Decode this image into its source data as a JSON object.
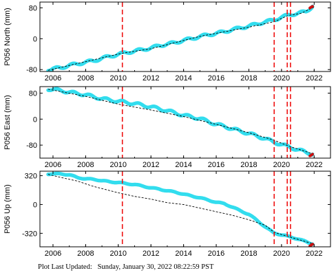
{
  "footer": {
    "label": "Plot Last Updated:",
    "value": "Sunday, January 30, 2022 08:22:59 PST"
  },
  "colors": {
    "data": "#33ddee",
    "model": "#000000",
    "events": "#ee1111",
    "recent": "#cc1111",
    "axis": "#000000"
  },
  "chart_data": [
    {
      "type": "scatter",
      "ylabel": "P056 North (mm)",
      "xlim": [
        2005.2,
        2023.0
      ],
      "ylim": [
        -85,
        95
      ],
      "xticks": [
        2006,
        2008,
        2010,
        2012,
        2014,
        2016,
        2018,
        2020,
        2022
      ],
      "yticks": [
        -80,
        0,
        80
      ],
      "event_lines": [
        2010.25,
        2019.55,
        2020.35,
        2020.55
      ],
      "series": [
        {
          "role": "data",
          "x": [
            2005.7,
            2006.0,
            2006.5,
            2007.0,
            2007.5,
            2008.0,
            2008.5,
            2009.0,
            2009.5,
            2010.0,
            2010.5,
            2011.0,
            2011.5,
            2012.0,
            2012.5,
            2013.0,
            2013.5,
            2014.0,
            2014.5,
            2015.0,
            2015.5,
            2016.0,
            2016.5,
            2017.0,
            2017.5,
            2018.0,
            2018.5,
            2019.0,
            2019.5,
            2020.0,
            2020.5,
            2021.0,
            2021.5,
            2021.9
          ],
          "y": [
            -80,
            -77,
            -76,
            -68,
            -66,
            -60,
            -58,
            -50,
            -46,
            -40,
            -36,
            -32,
            -28,
            -24,
            -18,
            -14,
            -10,
            -4,
            0,
            6,
            10,
            14,
            18,
            24,
            28,
            33,
            38,
            44,
            48,
            56,
            62,
            66,
            70,
            84
          ]
        },
        {
          "role": "model",
          "x": [
            2005.7,
            2010.2,
            2012.0,
            2015.0,
            2018.0,
            2019.55,
            2020.4,
            2021.2,
            2022.0
          ],
          "y": [
            -82,
            -38,
            -26,
            6,
            30,
            44,
            60,
            66,
            82
          ]
        }
      ]
    },
    {
      "type": "scatter",
      "ylabel": "P056 East (mm)",
      "xlim": [
        2005.2,
        2023.0
      ],
      "ylim": [
        -120,
        100
      ],
      "xticks": [
        2006,
        2008,
        2010,
        2012,
        2014,
        2016,
        2018,
        2020,
        2022
      ],
      "yticks": [
        -80,
        0,
        80
      ],
      "event_lines": [
        2010.25,
        2019.55,
        2020.35,
        2020.55
      ],
      "series": [
        {
          "role": "data",
          "x": [
            2005.7,
            2006.5,
            2007.0,
            2008.0,
            2009.0,
            2010.0,
            2011.0,
            2012.0,
            2013.0,
            2014.0,
            2015.0,
            2016.0,
            2016.5,
            2017.0,
            2018.0,
            2019.0,
            2019.5,
            2020.0,
            2021.0,
            2021.9
          ],
          "y": [
            93,
            88,
            83,
            75,
            63,
            55,
            48,
            38,
            26,
            12,
            2,
            -16,
            -22,
            -30,
            -44,
            -60,
            -70,
            -78,
            -94,
            -108
          ]
        },
        {
          "role": "model",
          "x": [
            2005.7,
            2008.0,
            2010.0,
            2012.0,
            2014.0,
            2016.0,
            2018.0,
            2019.5,
            2020.5,
            2022.0
          ],
          "y": [
            92,
            70,
            46,
            28,
            8,
            -16,
            -42,
            -64,
            -84,
            -108
          ]
        }
      ]
    },
    {
      "type": "scatter",
      "ylabel": "P056 Up (mm)",
      "xlim": [
        2005.2,
        2023.0
      ],
      "ylim": [
        -470,
        370
      ],
      "xticks": [
        2006,
        2008,
        2010,
        2012,
        2014,
        2016,
        2018,
        2020,
        2022
      ],
      "yticks": [
        -320,
        0,
        320
      ],
      "event_lines": [
        2010.25,
        2019.55,
        2020.35,
        2020.55
      ],
      "series": [
        {
          "role": "data",
          "x": [
            2005.7,
            2006.5,
            2007.0,
            2007.5,
            2008.0,
            2008.5,
            2009.0,
            2009.5,
            2010.0,
            2010.5,
            2011.0,
            2011.5,
            2012.0,
            2012.5,
            2013.0,
            2013.5,
            2014.0,
            2014.5,
            2015.0,
            2015.5,
            2016.0,
            2016.5,
            2017.0,
            2017.5,
            2018.0,
            2018.5,
            2019.0,
            2019.5,
            2020.0,
            2020.5,
            2021.0,
            2021.5,
            2021.9
          ],
          "y": [
            340,
            340,
            330,
            300,
            285,
            280,
            265,
            252,
            245,
            232,
            222,
            205,
            185,
            172,
            152,
            138,
            115,
            95,
            75,
            50,
            25,
            10,
            -30,
            -70,
            -110,
            -175,
            -250,
            -310,
            -340,
            -355,
            -385,
            -410,
            -440
          ]
        },
        {
          "role": "model",
          "x": [
            2005.7,
            2006.5,
            2007.5,
            2008.5,
            2010.0,
            2011.0,
            2012.0,
            2013.0,
            2014.0,
            2015.0,
            2016.0,
            2017.0,
            2018.0,
            2019.0,
            2019.55,
            2020.5,
            2022.0
          ],
          "y": [
            335,
            300,
            260,
            200,
            130,
            90,
            60,
            20,
            0,
            -40,
            -80,
            -120,
            -170,
            -230,
            -310,
            -360,
            -440
          ]
        }
      ]
    }
  ]
}
